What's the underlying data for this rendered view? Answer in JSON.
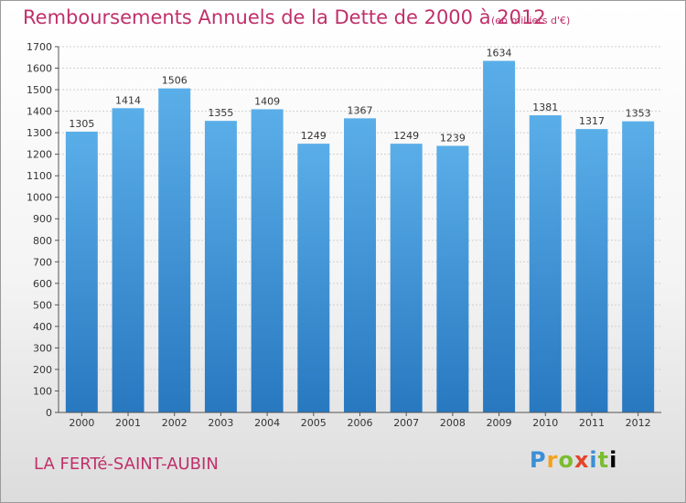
{
  "header": {
    "title": "Remboursements Annuels de la Dette de 2000 à 2012",
    "unit": "(en milliers d'€)"
  },
  "footer": {
    "commune": "LA FERTé-SAINT-AUBIN",
    "logo_text": "Proxiti"
  },
  "colors": {
    "bar_top": "#5aaee8",
    "bar_bottom": "#2878c0",
    "title": "#c0306a"
  },
  "chart_data": {
    "type": "bar",
    "title": "Remboursements Annuels de la Dette de 2000 à 2012",
    "categories": [
      "2000",
      "2001",
      "2002",
      "2003",
      "2004",
      "2005",
      "2006",
      "2007",
      "2008",
      "2009",
      "2010",
      "2011",
      "2012"
    ],
    "values": [
      1305,
      1414,
      1506,
      1355,
      1409,
      1249,
      1367,
      1249,
      1239,
      1634,
      1381,
      1317,
      1353
    ],
    "ylim": [
      0,
      1700
    ],
    "yticks": [
      0,
      100,
      200,
      300,
      400,
      500,
      600,
      700,
      800,
      900,
      1000,
      1100,
      1200,
      1300,
      1400,
      1500,
      1600,
      1700
    ],
    "grid": true,
    "legend": "none"
  }
}
